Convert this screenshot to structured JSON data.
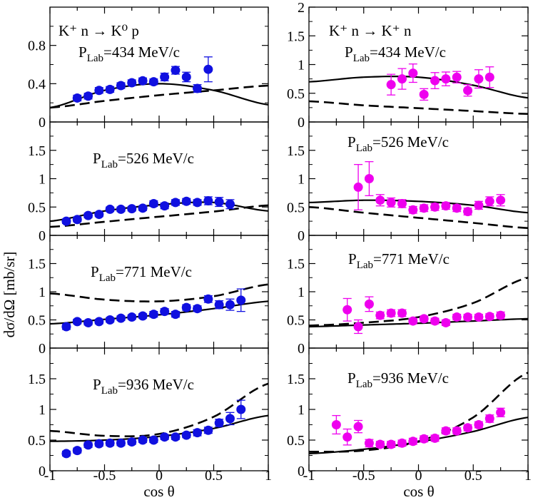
{
  "chart_data": {
    "type": "scatter",
    "ylabel": "dσ/dΩ [mb/sr]",
    "xlabel": "cos θ",
    "xlim": [
      -1,
      1
    ],
    "x_ticks": [
      "-1",
      "-0.5",
      "0",
      "0.5",
      "1"
    ],
    "columns": [
      {
        "reaction": "K⁺ n → K⁰ p",
        "color": "#1010e0",
        "panels": [
          {
            "plab": "P_Lab=434 MeV/c",
            "ylim": [
              0,
              1.2
            ],
            "y_ticks": [
              "0",
              "0.4",
              "0.8"
            ],
            "data": {
              "x": [
                -0.75,
                -0.65,
                -0.55,
                -0.45,
                -0.35,
                -0.25,
                -0.15,
                -0.05,
                0.05,
                0.15,
                0.25,
                0.35,
                0.45
              ],
              "y": [
                0.25,
                0.27,
                0.33,
                0.34,
                0.38,
                0.41,
                0.43,
                0.42,
                0.47,
                0.54,
                0.47,
                0.35,
                0.55
              ],
              "err": [
                0.03,
                0.03,
                0.03,
                0.03,
                0.03,
                0.03,
                0.03,
                0.03,
                0.04,
                0.04,
                0.05,
                0.04,
                0.13
              ]
            },
            "solid_curve": {
              "x": [
                -1,
                -0.5,
                0,
                0.5,
                1
              ],
              "y": [
                0.15,
                0.33,
                0.4,
                0.33,
                0.18
              ]
            },
            "dashed_curve": {
              "x": [
                -1,
                -0.5,
                0,
                0.5,
                1
              ],
              "y": [
                0.15,
                0.22,
                0.28,
                0.33,
                0.38
              ]
            }
          },
          {
            "plab": "P_Lab=526 MeV/c",
            "ylim": [
              0,
              2
            ],
            "y_ticks": [
              "0",
              "0.5",
              "1",
              "1.5"
            ],
            "data": {
              "x": [
                -0.85,
                -0.75,
                -0.65,
                -0.55,
                -0.45,
                -0.35,
                -0.25,
                -0.15,
                -0.05,
                0.05,
                0.15,
                0.25,
                0.35,
                0.45,
                0.55,
                0.65
              ],
              "y": [
                0.25,
                0.28,
                0.35,
                0.37,
                0.46,
                0.46,
                0.47,
                0.48,
                0.56,
                0.52,
                0.58,
                0.6,
                0.58,
                0.61,
                0.59,
                0.55
              ],
              "err": [
                0.04,
                0.04,
                0.04,
                0.04,
                0.04,
                0.04,
                0.04,
                0.04,
                0.05,
                0.05,
                0.05,
                0.05,
                0.05,
                0.07,
                0.08,
                0.08
              ]
            },
            "solid_curve": {
              "x": [
                -1,
                -0.5,
                0,
                0.5,
                1
              ],
              "y": [
                0.25,
                0.43,
                0.54,
                0.58,
                0.43
              ]
            },
            "dashed_curve": {
              "x": [
                -1,
                -0.5,
                0,
                0.5,
                1
              ],
              "y": [
                0.15,
                0.24,
                0.33,
                0.42,
                0.53
              ]
            }
          },
          {
            "plab": "P_Lab=771 MeV/c",
            "ylim": [
              0,
              2
            ],
            "y_ticks": [
              "0",
              "0.5",
              "1",
              "1.5"
            ],
            "data": {
              "x": [
                -0.85,
                -0.75,
                -0.65,
                -0.55,
                -0.45,
                -0.35,
                -0.25,
                -0.15,
                -0.05,
                0.05,
                0.15,
                0.25,
                0.35,
                0.45,
                0.55,
                0.65,
                0.75
              ],
              "y": [
                0.38,
                0.47,
                0.45,
                0.47,
                0.5,
                0.53,
                0.55,
                0.57,
                0.6,
                0.65,
                0.6,
                0.72,
                0.7,
                0.87,
                0.77,
                0.77,
                0.85
              ],
              "err": [
                0.05,
                0.04,
                0.04,
                0.04,
                0.04,
                0.04,
                0.04,
                0.04,
                0.05,
                0.05,
                0.05,
                0.05,
                0.05,
                0.06,
                0.07,
                0.1,
                0.2
              ]
            },
            "solid_curve": {
              "x": [
                -1,
                -0.5,
                0,
                0.5,
                1
              ],
              "y": [
                0.43,
                0.51,
                0.59,
                0.7,
                0.83
              ]
            },
            "dashed_curve": {
              "x": [
                -1,
                -0.5,
                0,
                0.5,
                1
              ],
              "y": [
                0.97,
                0.86,
                0.83,
                0.92,
                1.13
              ]
            }
          },
          {
            "plab": "P_Lab=936 MeV/c",
            "ylim": [
              0,
              2
            ],
            "y_ticks": [
              "0",
              "0.5",
              "1",
              "1.5"
            ],
            "data": {
              "x": [
                -0.85,
                -0.75,
                -0.65,
                -0.55,
                -0.45,
                -0.35,
                -0.25,
                -0.15,
                -0.05,
                0.05,
                0.15,
                0.25,
                0.35,
                0.45,
                0.55,
                0.65,
                0.75
              ],
              "y": [
                0.28,
                0.33,
                0.42,
                0.44,
                0.45,
                0.45,
                0.47,
                0.5,
                0.5,
                0.55,
                0.55,
                0.58,
                0.62,
                0.66,
                0.78,
                0.85,
                1.0
              ],
              "err": [
                0.04,
                0.04,
                0.04,
                0.04,
                0.04,
                0.04,
                0.04,
                0.04,
                0.04,
                0.04,
                0.04,
                0.04,
                0.05,
                0.05,
                0.06,
                0.1,
                0.15
              ]
            },
            "solid_curve": {
              "x": [
                -1,
                -0.5,
                0,
                0.5,
                1
              ],
              "y": [
                0.48,
                0.5,
                0.56,
                0.69,
                0.9
              ]
            },
            "dashed_curve": {
              "x": [
                -1,
                -0.5,
                0,
                0.5,
                1
              ],
              "y": [
                0.65,
                0.57,
                0.6,
                0.88,
                1.42
              ]
            }
          }
        ]
      },
      {
        "reaction": "K⁺ n → K⁺ n",
        "color": "#ee00ee",
        "panels": [
          {
            "plab": "P_Lab=434 MeV/c",
            "ylim": [
              0,
              2
            ],
            "y_ticks": [
              "0",
              "0.5",
              "1",
              "1.5",
              "2"
            ],
            "data": {
              "x": [
                -0.25,
                -0.15,
                -0.05,
                0.05,
                0.15,
                0.25,
                0.35,
                0.45,
                0.55,
                0.65
              ],
              "y": [
                0.65,
                0.75,
                0.85,
                0.48,
                0.72,
                0.75,
                0.78,
                0.55,
                0.75,
                0.78
              ],
              "err": [
                0.18,
                0.18,
                0.16,
                0.1,
                0.14,
                0.12,
                0.1,
                0.1,
                0.16,
                0.18
              ]
            },
            "solid_curve": {
              "x": [
                -1,
                -0.5,
                0,
                0.5,
                1
              ],
              "y": [
                0.7,
                0.78,
                0.78,
                0.64,
                0.42
              ]
            },
            "dashed_curve": {
              "x": [
                -1,
                -0.5,
                0,
                0.5,
                1
              ],
              "y": [
                0.36,
                0.29,
                0.24,
                0.19,
                0.14
              ]
            }
          },
          {
            "plab": "P_Lab=526 MeV/c",
            "ylim": [
              0,
              2
            ],
            "y_ticks": [
              "0",
              "0.5",
              "1",
              "1.5"
            ],
            "data": {
              "x": [
                -0.55,
                -0.45,
                -0.35,
                -0.25,
                -0.15,
                -0.05,
                0.05,
                0.15,
                0.25,
                0.35,
                0.45,
                0.55,
                0.65,
                0.75
              ],
              "y": [
                0.85,
                1.0,
                0.62,
                0.58,
                0.56,
                0.45,
                0.48,
                0.5,
                0.52,
                0.48,
                0.42,
                0.53,
                0.6,
                0.62
              ],
              "err": [
                0.4,
                0.3,
                0.1,
                0.08,
                0.07,
                0.06,
                0.06,
                0.06,
                0.06,
                0.06,
                0.06,
                0.07,
                0.08,
                0.1
              ]
            },
            "solid_curve": {
              "x": [
                -1,
                -0.5,
                0,
                0.5,
                1
              ],
              "y": [
                0.58,
                0.62,
                0.6,
                0.53,
                0.4
              ]
            },
            "dashed_curve": {
              "x": [
                -1,
                -0.5,
                0,
                0.5,
                1
              ],
              "y": [
                0.5,
                0.4,
                0.31,
                0.22,
                0.13
              ]
            }
          },
          {
            "plab": "P_Lab=771 MeV/c",
            "ylim": [
              0,
              2
            ],
            "y_ticks": [
              "0",
              "0.5",
              "1",
              "1.5"
            ],
            "data": {
              "x": [
                -0.65,
                -0.55,
                -0.45,
                -0.35,
                -0.25,
                -0.15,
                -0.05,
                0.05,
                0.15,
                0.25,
                0.35,
                0.45,
                0.55,
                0.65,
                0.75
              ],
              "y": [
                0.68,
                0.38,
                0.78,
                0.58,
                0.62,
                0.62,
                0.48,
                0.52,
                0.48,
                0.45,
                0.55,
                0.55,
                0.55,
                0.56,
                0.58
              ],
              "err": [
                0.2,
                0.12,
                0.13,
                0.06,
                0.06,
                0.06,
                0.05,
                0.05,
                0.05,
                0.05,
                0.05,
                0.05,
                0.05,
                0.05,
                0.06
              ]
            },
            "solid_curve": {
              "x": [
                -1,
                -0.5,
                0,
                0.5,
                1
              ],
              "y": [
                0.38,
                0.41,
                0.44,
                0.48,
                0.52
              ]
            },
            "dashed_curve": {
              "x": [
                -1,
                -0.5,
                0,
                0.5,
                1
              ],
              "y": [
                0.4,
                0.45,
                0.55,
                0.8,
                1.25
              ]
            }
          },
          {
            "plab": "P_Lab=936 MeV/c",
            "ylim": [
              0,
              2
            ],
            "y_ticks": [
              "0",
              "0.5",
              "1",
              "1.5"
            ],
            "data": {
              "x": [
                -0.75,
                -0.65,
                -0.55,
                -0.45,
                -0.35,
                -0.25,
                -0.15,
                -0.05,
                0.05,
                0.15,
                0.25,
                0.35,
                0.45,
                0.55,
                0.65,
                0.75
              ],
              "y": [
                0.75,
                0.55,
                0.72,
                0.45,
                0.43,
                0.43,
                0.45,
                0.48,
                0.52,
                0.53,
                0.65,
                0.65,
                0.7,
                0.75,
                0.85,
                0.95
              ],
              "err": [
                0.15,
                0.13,
                0.1,
                0.06,
                0.05,
                0.05,
                0.05,
                0.05,
                0.05,
                0.05,
                0.05,
                0.05,
                0.05,
                0.05,
                0.06,
                0.07
              ]
            },
            "solid_curve": {
              "x": [
                -1,
                -0.5,
                0,
                0.5,
                1
              ],
              "y": [
                0.28,
                0.35,
                0.47,
                0.64,
                0.87
              ]
            },
            "dashed_curve": {
              "x": [
                -1,
                -0.5,
                0,
                0.5,
                1
              ],
              "y": [
                0.31,
                0.33,
                0.48,
                0.87,
                1.6
              ]
            }
          }
        ]
      }
    ]
  }
}
